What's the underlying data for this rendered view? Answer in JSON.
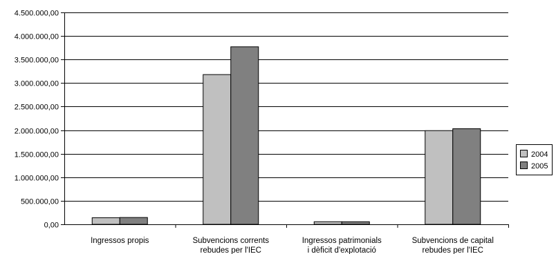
{
  "chart_data": {
    "type": "bar",
    "title": "",
    "xlabel": "",
    "ylabel": "",
    "categories": [
      [
        "Ingressos propis"
      ],
      [
        "Subvencions corrents",
        "rebudes per l'IEC"
      ],
      [
        "Ingressos patrimonials",
        "i dèficit d'explotació"
      ],
      [
        "Subvencions de capital",
        "rebudes per l'IEC"
      ]
    ],
    "series": [
      {
        "name": "2004",
        "color": "#c0c0c0",
        "values": [
          140000,
          3180000,
          55000,
          1990000
        ]
      },
      {
        "name": "2005",
        "color": "#808080",
        "values": [
          145000,
          3770000,
          55000,
          2030000
        ]
      }
    ],
    "ylim": [
      0,
      4500000
    ],
    "y_ticks": [
      {
        "value": 0,
        "label": "0,00"
      },
      {
        "value": 500000,
        "label": "500.000,00"
      },
      {
        "value": 1000000,
        "label": "1.000.000,00"
      },
      {
        "value": 1500000,
        "label": "1.500.000,00"
      },
      {
        "value": 2000000,
        "label": "2.000.000,00"
      },
      {
        "value": 2500000,
        "label": "2.500.000,00"
      },
      {
        "value": 3000000,
        "label": "3.000.000,00"
      },
      {
        "value": 3500000,
        "label": "3.500.000,00"
      },
      {
        "value": 4000000,
        "label": "4.000.000,00"
      },
      {
        "value": 4500000,
        "label": "4.500.000,00"
      }
    ],
    "grid": true,
    "legend_position": "right"
  }
}
